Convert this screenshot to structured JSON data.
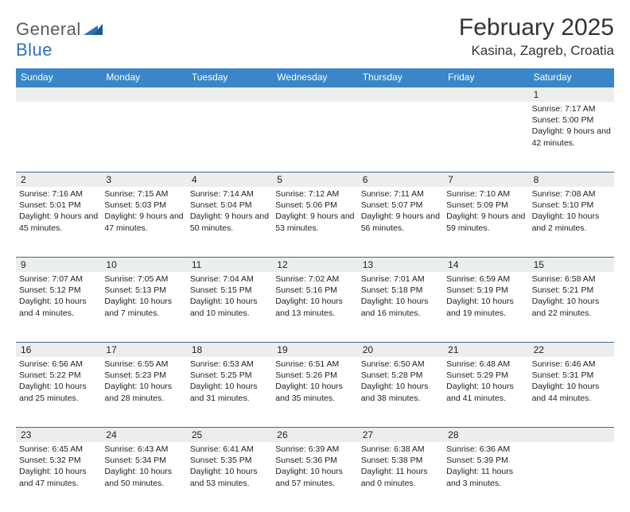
{
  "logo": {
    "word1": "General",
    "word2": "Blue"
  },
  "header": {
    "month_title": "February 2025",
    "location": "Kasina, Zagreb, Croatia"
  },
  "colors": {
    "header_bg": "#3a86c8",
    "header_text": "#ffffff",
    "daynum_bg": "#eceded",
    "week_divider": "#3a6b94",
    "logo_gray": "#5b5b5b",
    "logo_blue": "#2d72b8",
    "text": "#222222",
    "background": "#ffffff"
  },
  "typography": {
    "month_title_fontsize": 30,
    "location_fontsize": 17,
    "dow_fontsize": 12,
    "daynum_fontsize": 12,
    "cell_fontsize": 10.5
  },
  "days_of_week": [
    "Sunday",
    "Monday",
    "Tuesday",
    "Wednesday",
    "Thursday",
    "Friday",
    "Saturday"
  ],
  "weeks": [
    [
      {
        "num": "",
        "lines": []
      },
      {
        "num": "",
        "lines": []
      },
      {
        "num": "",
        "lines": []
      },
      {
        "num": "",
        "lines": []
      },
      {
        "num": "",
        "lines": []
      },
      {
        "num": "",
        "lines": []
      },
      {
        "num": "1",
        "lines": [
          "Sunrise: 7:17 AM",
          "Sunset: 5:00 PM",
          "Daylight: 9 hours and 42 minutes."
        ]
      }
    ],
    [
      {
        "num": "2",
        "lines": [
          "Sunrise: 7:16 AM",
          "Sunset: 5:01 PM",
          "Daylight: 9 hours and 45 minutes."
        ]
      },
      {
        "num": "3",
        "lines": [
          "Sunrise: 7:15 AM",
          "Sunset: 5:03 PM",
          "Daylight: 9 hours and 47 minutes."
        ]
      },
      {
        "num": "4",
        "lines": [
          "Sunrise: 7:14 AM",
          "Sunset: 5:04 PM",
          "Daylight: 9 hours and 50 minutes."
        ]
      },
      {
        "num": "5",
        "lines": [
          "Sunrise: 7:12 AM",
          "Sunset: 5:06 PM",
          "Daylight: 9 hours and 53 minutes."
        ]
      },
      {
        "num": "6",
        "lines": [
          "Sunrise: 7:11 AM",
          "Sunset: 5:07 PM",
          "Daylight: 9 hours and 56 minutes."
        ]
      },
      {
        "num": "7",
        "lines": [
          "Sunrise: 7:10 AM",
          "Sunset: 5:09 PM",
          "Daylight: 9 hours and 59 minutes."
        ]
      },
      {
        "num": "8",
        "lines": [
          "Sunrise: 7:08 AM",
          "Sunset: 5:10 PM",
          "Daylight: 10 hours and 2 minutes."
        ]
      }
    ],
    [
      {
        "num": "9",
        "lines": [
          "Sunrise: 7:07 AM",
          "Sunset: 5:12 PM",
          "Daylight: 10 hours and 4 minutes."
        ]
      },
      {
        "num": "10",
        "lines": [
          "Sunrise: 7:05 AM",
          "Sunset: 5:13 PM",
          "Daylight: 10 hours and 7 minutes."
        ]
      },
      {
        "num": "11",
        "lines": [
          "Sunrise: 7:04 AM",
          "Sunset: 5:15 PM",
          "Daylight: 10 hours and 10 minutes."
        ]
      },
      {
        "num": "12",
        "lines": [
          "Sunrise: 7:02 AM",
          "Sunset: 5:16 PM",
          "Daylight: 10 hours and 13 minutes."
        ]
      },
      {
        "num": "13",
        "lines": [
          "Sunrise: 7:01 AM",
          "Sunset: 5:18 PM",
          "Daylight: 10 hours and 16 minutes."
        ]
      },
      {
        "num": "14",
        "lines": [
          "Sunrise: 6:59 AM",
          "Sunset: 5:19 PM",
          "Daylight: 10 hours and 19 minutes."
        ]
      },
      {
        "num": "15",
        "lines": [
          "Sunrise: 6:58 AM",
          "Sunset: 5:21 PM",
          "Daylight: 10 hours and 22 minutes."
        ]
      }
    ],
    [
      {
        "num": "16",
        "lines": [
          "Sunrise: 6:56 AM",
          "Sunset: 5:22 PM",
          "Daylight: 10 hours and 25 minutes."
        ]
      },
      {
        "num": "17",
        "lines": [
          "Sunrise: 6:55 AM",
          "Sunset: 5:23 PM",
          "Daylight: 10 hours and 28 minutes."
        ]
      },
      {
        "num": "18",
        "lines": [
          "Sunrise: 6:53 AM",
          "Sunset: 5:25 PM",
          "Daylight: 10 hours and 31 minutes."
        ]
      },
      {
        "num": "19",
        "lines": [
          "Sunrise: 6:51 AM",
          "Sunset: 5:26 PM",
          "Daylight: 10 hours and 35 minutes."
        ]
      },
      {
        "num": "20",
        "lines": [
          "Sunrise: 6:50 AM",
          "Sunset: 5:28 PM",
          "Daylight: 10 hours and 38 minutes."
        ]
      },
      {
        "num": "21",
        "lines": [
          "Sunrise: 6:48 AM",
          "Sunset: 5:29 PM",
          "Daylight: 10 hours and 41 minutes."
        ]
      },
      {
        "num": "22",
        "lines": [
          "Sunrise: 6:46 AM",
          "Sunset: 5:31 PM",
          "Daylight: 10 hours and 44 minutes."
        ]
      }
    ],
    [
      {
        "num": "23",
        "lines": [
          "Sunrise: 6:45 AM",
          "Sunset: 5:32 PM",
          "Daylight: 10 hours and 47 minutes."
        ]
      },
      {
        "num": "24",
        "lines": [
          "Sunrise: 6:43 AM",
          "Sunset: 5:34 PM",
          "Daylight: 10 hours and 50 minutes."
        ]
      },
      {
        "num": "25",
        "lines": [
          "Sunrise: 6:41 AM",
          "Sunset: 5:35 PM",
          "Daylight: 10 hours and 53 minutes."
        ]
      },
      {
        "num": "26",
        "lines": [
          "Sunrise: 6:39 AM",
          "Sunset: 5:36 PM",
          "Daylight: 10 hours and 57 minutes."
        ]
      },
      {
        "num": "27",
        "lines": [
          "Sunrise: 6:38 AM",
          "Sunset: 5:38 PM",
          "Daylight: 11 hours and 0 minutes."
        ]
      },
      {
        "num": "28",
        "lines": [
          "Sunrise: 6:36 AM",
          "Sunset: 5:39 PM",
          "Daylight: 11 hours and 3 minutes."
        ]
      },
      {
        "num": "",
        "lines": []
      }
    ]
  ]
}
